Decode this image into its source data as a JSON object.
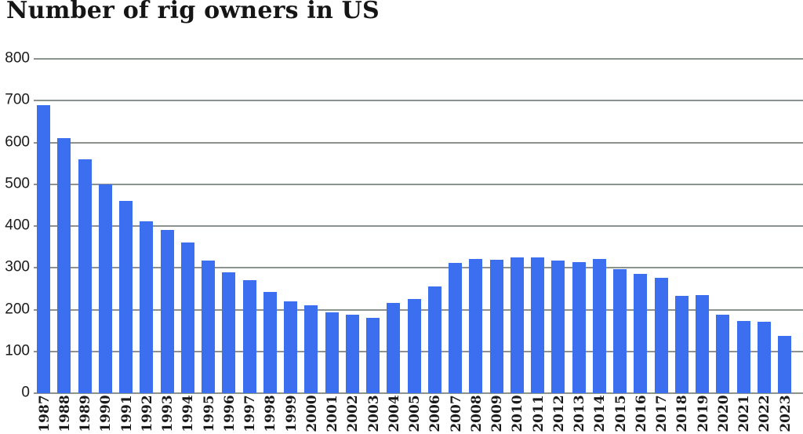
{
  "title": "Number of rig owners in US",
  "colors": {
    "bar": "#3c6ef0",
    "gridline": "#8b948c",
    "text": "#1a1a1a",
    "background": "#ffffff"
  },
  "chart_data": {
    "type": "bar",
    "title": "Number of rig owners in US",
    "xlabel": "",
    "ylabel": "",
    "ylim": [
      0,
      800
    ],
    "ytick_interval": 100,
    "yticks": [
      "0",
      "100",
      "200",
      "300",
      "400",
      "500",
      "600",
      "700",
      "800"
    ],
    "grid": true,
    "legend": false,
    "categories": [
      "1987",
      "1988",
      "1989",
      "1990",
      "1991",
      "1992",
      "1993",
      "1994",
      "1995",
      "1996",
      "1997",
      "1998",
      "1999",
      "2000",
      "2001",
      "2002",
      "2003",
      "2004",
      "2005",
      "2006",
      "2007",
      "2008",
      "2009",
      "2010",
      "2011",
      "2012",
      "2013",
      "2014",
      "2015",
      "2016",
      "2017",
      "2018",
      "2019",
      "2020",
      "2021",
      "2022",
      "2023"
    ],
    "values": [
      690,
      610,
      560,
      500,
      460,
      412,
      390,
      360,
      317,
      290,
      270,
      242,
      220,
      210,
      193,
      187,
      180,
      216,
      226,
      255,
      312,
      322,
      320,
      325,
      325,
      318,
      314,
      321,
      297,
      286,
      276,
      232,
      235,
      188,
      172,
      170,
      138
    ]
  }
}
